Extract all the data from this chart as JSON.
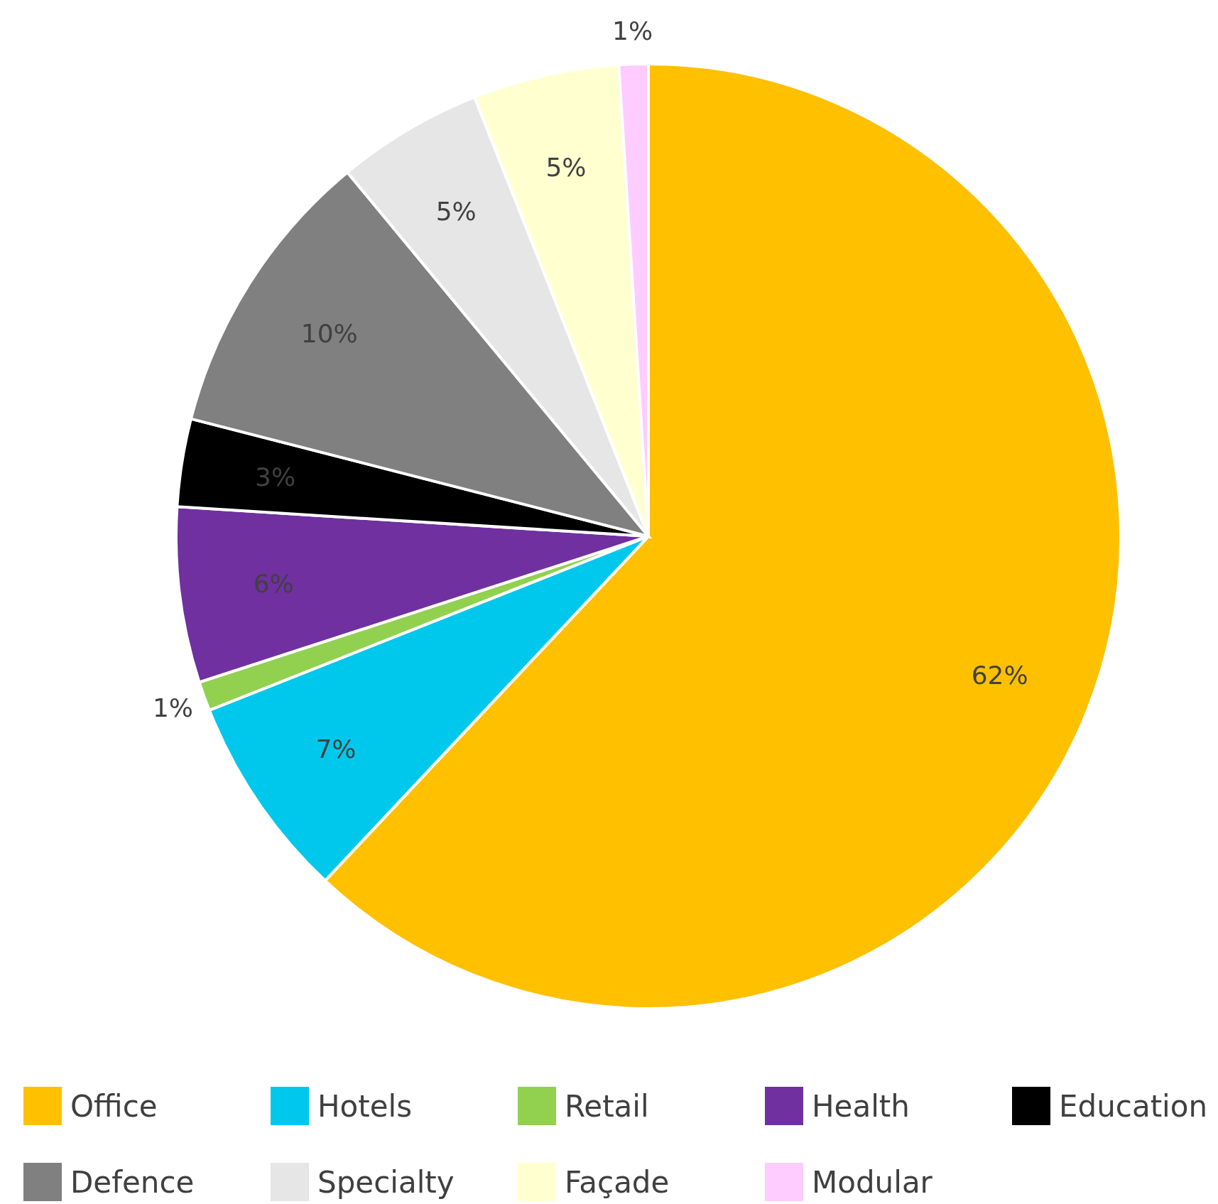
{
  "chart_data": {
    "type": "pie",
    "categories": [
      "Office",
      "Hotels",
      "Retail",
      "Health",
      "Education",
      "Defence",
      "Specialty",
      "Façade",
      "Modular"
    ],
    "values": [
      62,
      7,
      1,
      6,
      3,
      10,
      5,
      5,
      1
    ],
    "colors": [
      "#ffc000",
      "#00c8ec",
      "#92d050",
      "#7030a0",
      "#000000",
      "#808080",
      "#e6e6e6",
      "#ffffd0",
      "#ffccff"
    ],
    "value_labels": [
      "62%",
      "7%",
      "1%",
      "6%",
      "3%",
      "10%",
      "5%",
      "5%",
      "1%"
    ],
    "legend": "bottom"
  }
}
